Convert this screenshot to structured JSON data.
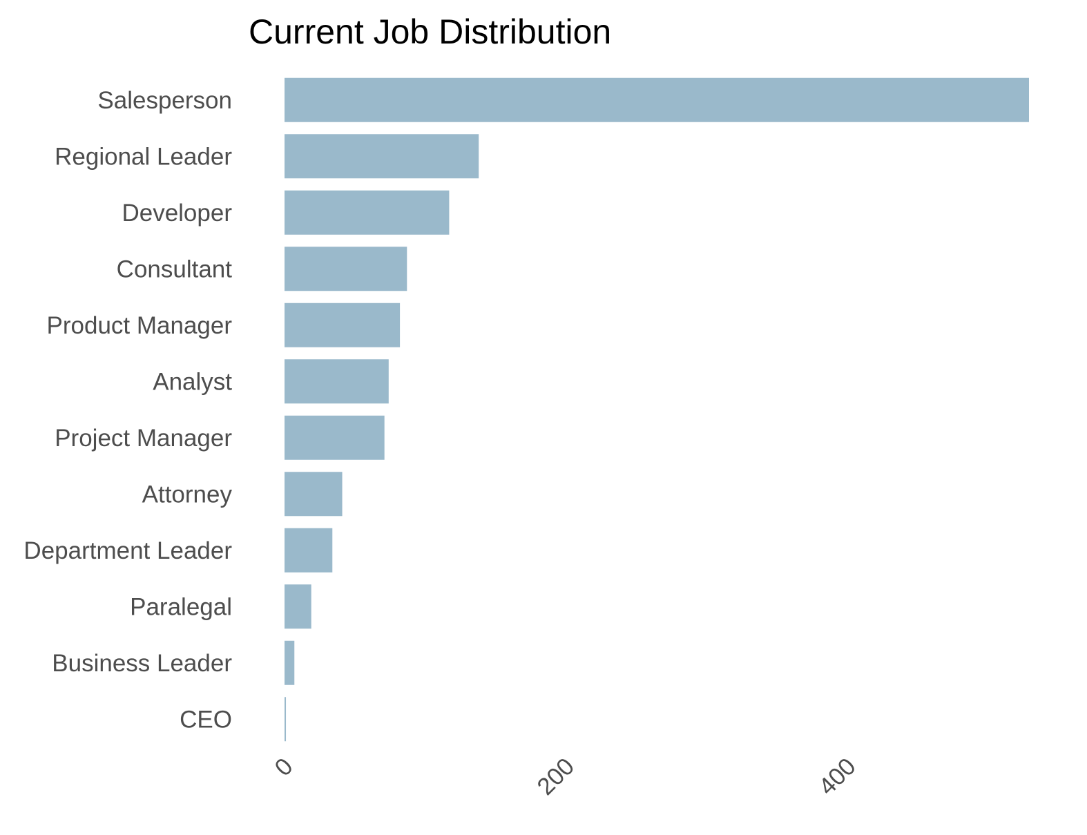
{
  "chart_data": {
    "type": "bar",
    "orientation": "horizontal",
    "title": "Current Job Distribution",
    "xlabel": "",
    "ylabel": "",
    "categories": [
      "Salesperson",
      "Regional Leader",
      "Developer",
      "Consultant",
      "Product Manager",
      "Analyst",
      "Project Manager",
      "Attorney",
      "Department Leader",
      "Paralegal",
      "Business Leader",
      "CEO"
    ],
    "values": [
      529,
      138,
      117,
      87,
      82,
      74,
      71,
      41,
      34,
      19,
      7,
      1
    ],
    "xlim": [
      0,
      529
    ],
    "x_ticks": [
      "0",
      "200",
      "400"
    ],
    "x_tick_values": [
      0,
      200,
      400
    ],
    "grid": false,
    "legend": "none",
    "bar_color": "#9ab9cb"
  }
}
